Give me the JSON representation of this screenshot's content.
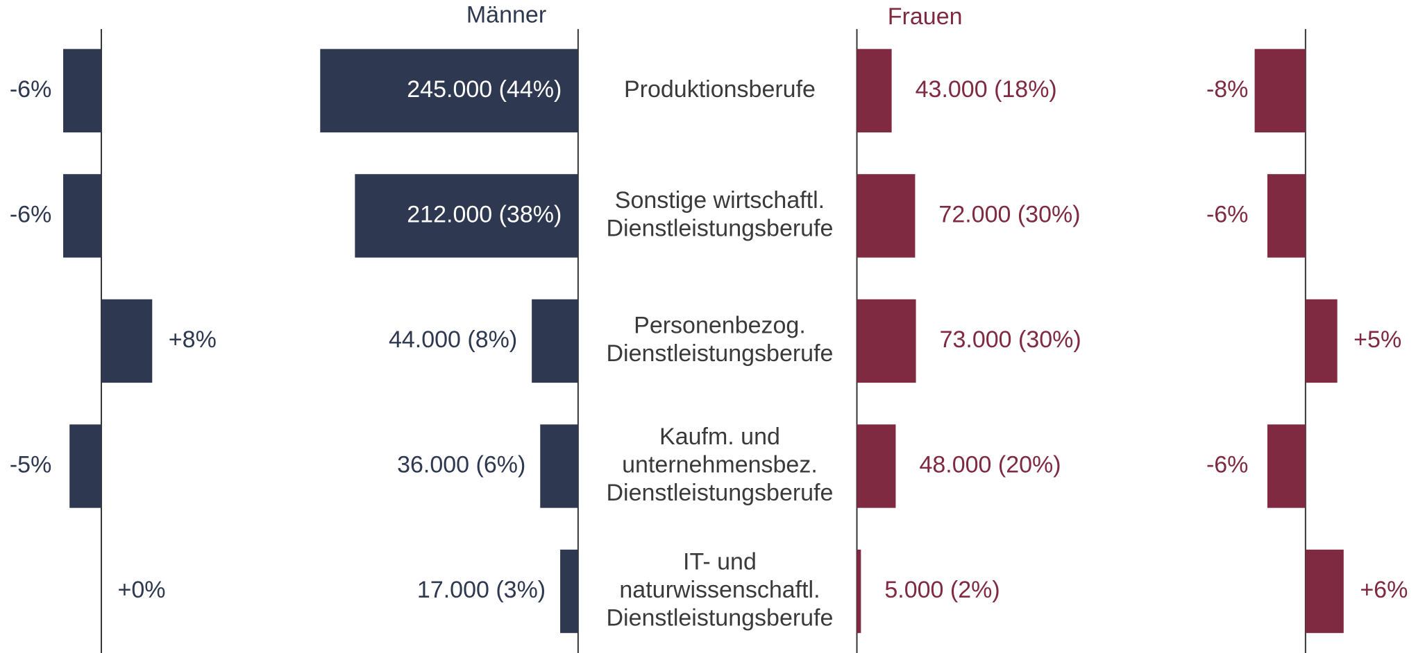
{
  "chart_data": {
    "type": "butterfly",
    "categories": [
      [
        "Produktionsberufe"
      ],
      [
        "Sonstige wirtschaftl.",
        "Dienstleistungsberufe"
      ],
      [
        "Personenbezog.",
        "Dienstleistungsberufe"
      ],
      [
        "Kaufm. und",
        "unternehmensbez.",
        "Dienstleistungsberufe"
      ],
      [
        "IT- und",
        "naturwissenschaftl.",
        "Dienstleistungsberufe"
      ]
    ],
    "series": [
      {
        "name": "Männer",
        "color": "#2e3850",
        "values": [
          245000,
          212000,
          44000,
          36000,
          17000
        ],
        "value_labels": [
          "245.000 (44%)",
          "212.000 (38%)",
          "44.000 (8%)",
          "36.000 (6%)",
          "17.000 (3%)"
        ],
        "change": {
          "values": [
            -6,
            -6,
            8,
            -5,
            0
          ],
          "value_labels": [
            "-6%",
            "-6%",
            "+8%",
            "-5%",
            "+0%"
          ]
        }
      },
      {
        "name": "Frauen",
        "color": "#7f2a40",
        "values": [
          43000,
          72000,
          73000,
          48000,
          5000
        ],
        "value_labels": [
          "43.000 (18%)",
          "72.000 (30%)",
          "73.000 (30%)",
          "48.000 (20%)",
          "5.000 (2%)"
        ],
        "change": {
          "values": [
            -8,
            -6,
            5,
            -6,
            6
          ],
          "value_labels": [
            "-8%",
            "-6%",
            "+5%",
            "-6%",
            "+6%"
          ]
        }
      }
    ]
  }
}
